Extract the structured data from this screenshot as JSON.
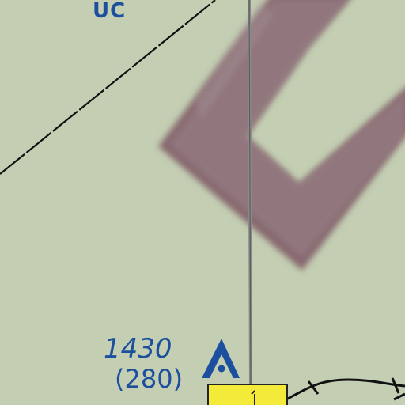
{
  "chart": {
    "airspace_label": "UC",
    "obstacle": {
      "height_msl": "1430",
      "height_agl": "(280)",
      "symbol": "obstacle-icon"
    },
    "colors": {
      "background": "#c3ceb2",
      "label_blue": "#1c4f9e",
      "mtr_band": "#8a6e74",
      "boundary_line": "#101010",
      "meridian_line": "#7a7a7a",
      "airport_fill": "#f4ea3a"
    }
  }
}
